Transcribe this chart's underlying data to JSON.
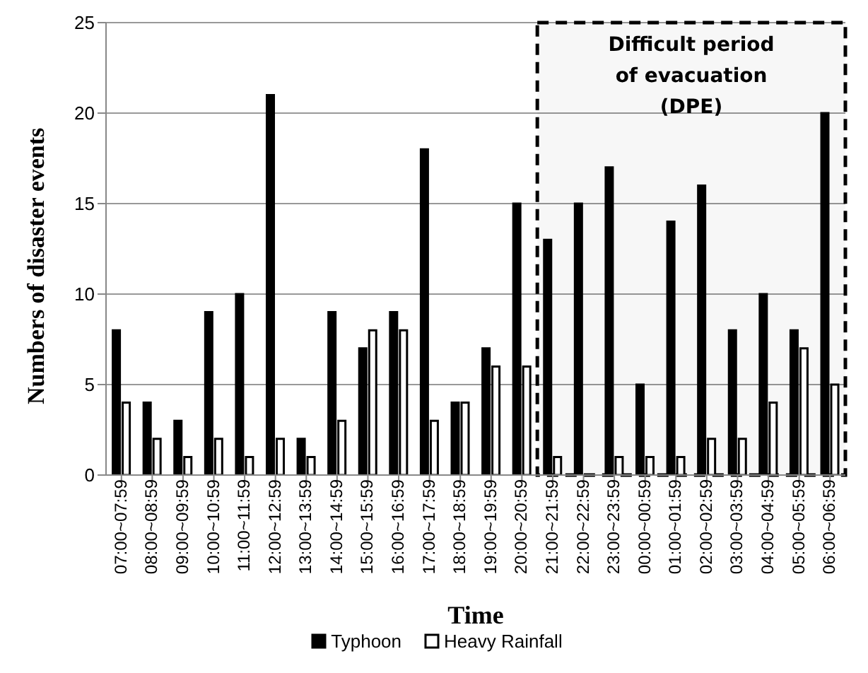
{
  "chart_data": {
    "type": "bar",
    "xlabel": "Time",
    "ylabel": "Numbers of disaster events",
    "categories": [
      "07:00~07:59",
      "08:00~08:59",
      "09:00~09:59",
      "10:00~10:59",
      "11:00~11:59",
      "12:00~12:59",
      "13:00~13:59",
      "14:00~14:59",
      "15:00~15:59",
      "16:00~16:59",
      "17:00~17:59",
      "18:00~18:59",
      "19:00~19:59",
      "20:00~20:59",
      "21:00~21:59",
      "22:00~22:59",
      "23:00~23:59",
      "00:00~00:59",
      "01:00~01:59",
      "02:00~02:59",
      "03:00~03:59",
      "04:00~04:59",
      "05:00~05:59",
      "06:00~06:59"
    ],
    "series": [
      {
        "name": "Typhoon",
        "color": "#000000",
        "values": [
          8,
          4,
          3,
          9,
          10,
          21,
          2,
          9,
          7,
          9,
          18,
          4,
          7,
          15,
          13,
          15,
          17,
          5,
          14,
          16,
          8,
          10,
          8,
          20
        ]
      },
      {
        "name": "Heavy Rainfall",
        "color": "#ffffff",
        "values": [
          4,
          2,
          1,
          2,
          1,
          2,
          1,
          3,
          8,
          8,
          3,
          4,
          6,
          6,
          1,
          0,
          1,
          1,
          1,
          2,
          2,
          4,
          7,
          5
        ]
      }
    ],
    "ylim": [
      0,
      25
    ],
    "yticks": [
      0,
      5,
      10,
      15,
      20,
      25
    ],
    "grid": "y",
    "legend": "bottom",
    "bands": [
      {
        "axis": "x",
        "from": "21:00~21:59",
        "to": "06:00~06:59",
        "label": "Difficult period of evacuation (DPE)"
      }
    ]
  }
}
